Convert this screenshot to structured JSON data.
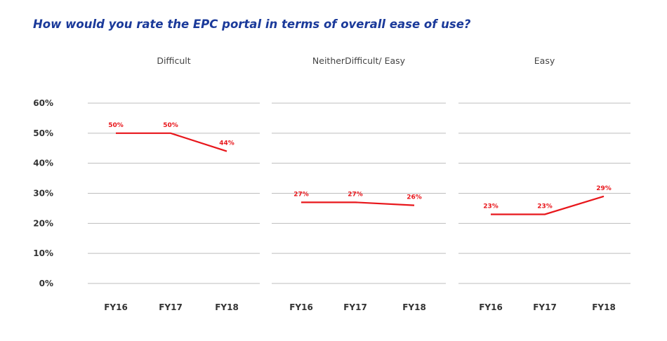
{
  "chart_data": {
    "type": "line",
    "title": "How would you rate the EPC portal in terms of overall ease of use?",
    "categories": [
      "FY16",
      "FY17",
      "FY18"
    ],
    "y_ticks": [
      "0%",
      "10%",
      "20%",
      "30%",
      "40%",
      "50%",
      "60%"
    ],
    "ylim": [
      0,
      60
    ],
    "grid": true,
    "line_color": "#e8161b",
    "panels": [
      {
        "title": "Difficult",
        "values": [
          50,
          50,
          44
        ],
        "labels": [
          "50%",
          "50%",
          "44%"
        ]
      },
      {
        "title": "NeitherDifficult/ Easy",
        "values": [
          27,
          27,
          26
        ],
        "labels": [
          "27%",
          "27%",
          "26%"
        ]
      },
      {
        "title": "Easy",
        "values": [
          23,
          23,
          29
        ],
        "labels": [
          "23%",
          "23%",
          "29%"
        ]
      }
    ]
  }
}
